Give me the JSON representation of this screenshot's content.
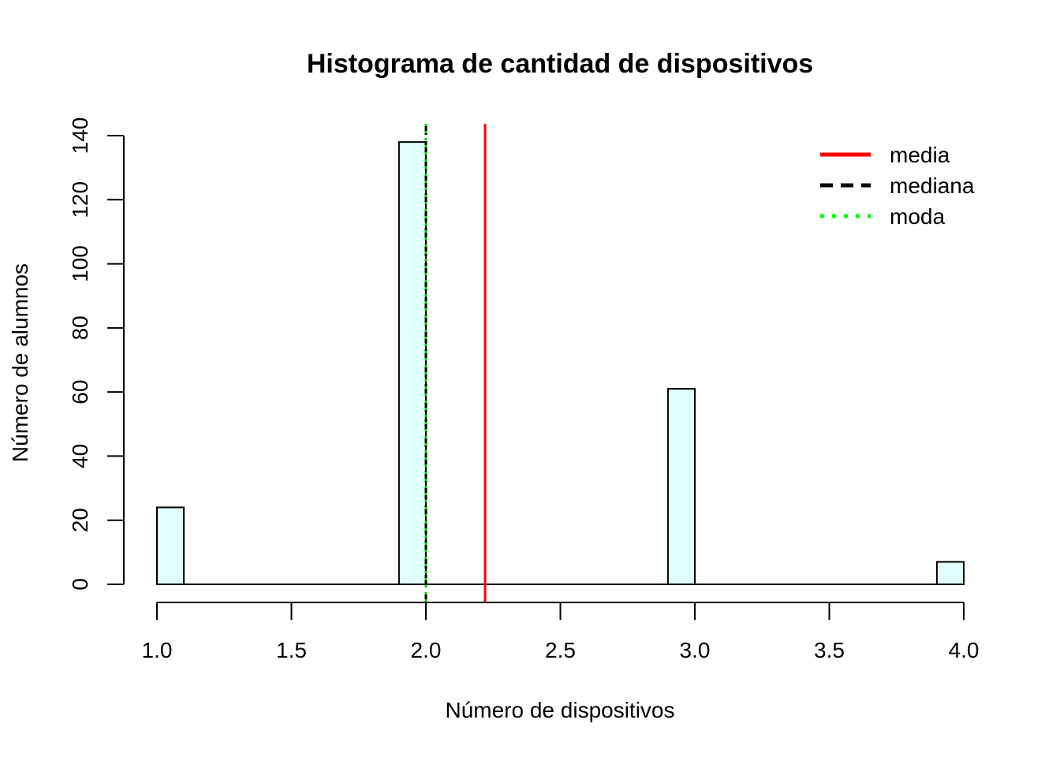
{
  "chart_data": {
    "type": "bar",
    "title": "Histograma de cantidad de dispositivos",
    "xlabel": "Número de dispositivos",
    "ylabel": "Número de alumnos",
    "xlim": [
      1.0,
      4.0
    ],
    "ylim": [
      0,
      140
    ],
    "x_ticks": [
      "1.0",
      "1.5",
      "2.0",
      "2.5",
      "3.0",
      "3.5",
      "4.0"
    ],
    "y_ticks": [
      "0",
      "20",
      "40",
      "60",
      "80",
      "100",
      "120",
      "140"
    ],
    "bin_width": 0.1,
    "bins": [
      {
        "from": 1.0,
        "to": 1.1,
        "count": 24
      },
      {
        "from": 1.9,
        "to": 2.0,
        "count": 138
      },
      {
        "from": 2.9,
        "to": 3.0,
        "count": 61
      },
      {
        "from": 3.9,
        "to": 4.0,
        "count": 7
      }
    ],
    "bar_fill": "#e0ffff",
    "bar_stroke": "#000000",
    "grid": false,
    "reference_lines": [
      {
        "name": "media",
        "value": 2.22,
        "color": "#ff0000",
        "dash": "solid"
      },
      {
        "name": "mediana",
        "value": 2.0,
        "color": "#000000",
        "dash": "dashed"
      },
      {
        "name": "moda",
        "value": 2.0,
        "color": "#00cc00",
        "dash": "dotted"
      }
    ],
    "legend": {
      "position": "top-right",
      "items": [
        {
          "label": "media",
          "color": "#ff0000",
          "dash": "solid"
        },
        {
          "label": "mediana",
          "color": "#000000",
          "dash": "dashed"
        },
        {
          "label": "moda",
          "color": "#00ff00",
          "dash": "dotted"
        }
      ]
    }
  }
}
